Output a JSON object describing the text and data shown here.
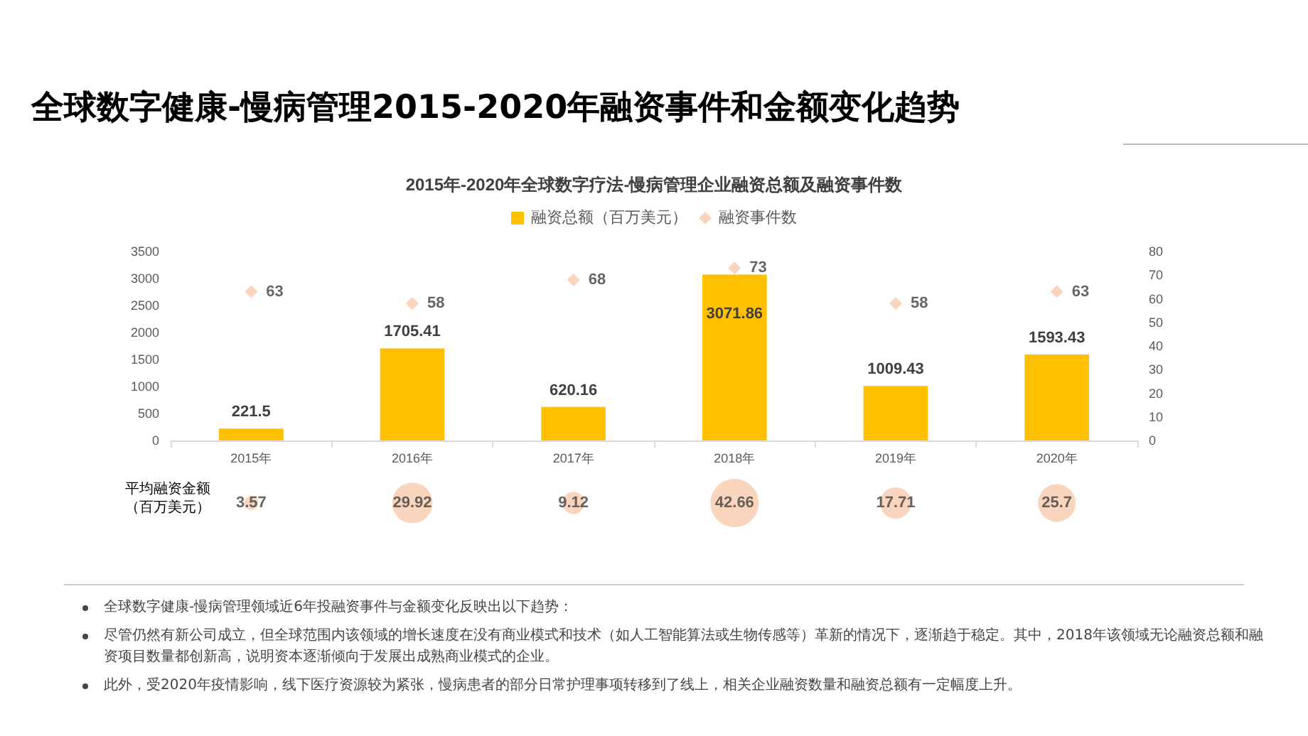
{
  "chart_data": [
    {
      "type": "bar",
      "title": "全球数字健康-慢病管理2015-2020年融资事件和金额变化趋势",
      "subtitle": "2015年-2020年全球数字疗法-慢病管理企业融资总额及融资事件数",
      "categories": [
        "2015年",
        "2016年",
        "2017年",
        "2018年",
        "2019年",
        "2020年"
      ],
      "series": [
        {
          "name": "融资总额（百万美元）",
          "color": "#ffc000",
          "values": [
            221.5,
            1705.41,
            620.16,
            3071.86,
            1009.43,
            1593.43
          ]
        },
        {
          "name": "融资事件数",
          "type": "scatter",
          "axis": "y2",
          "marker": "diamond",
          "color": "#f8cbad",
          "values": [
            63,
            58,
            68,
            73,
            58,
            63
          ]
        }
      ],
      "ylim": [
        0,
        3500
      ],
      "yticks": [
        0,
        500,
        1000,
        1500,
        2000,
        2500,
        3000,
        3500
      ],
      "y2lim": [
        0,
        80
      ],
      "y2ticks": [
        0,
        10,
        20,
        30,
        40,
        50,
        60,
        70,
        80
      ],
      "data_labels": true,
      "grid": false,
      "legend": "top",
      "annotations": [
        "全球数字健康-慢病管理领域近6年投融资事件与金额变化反映出以下趋势：",
        "尽管仍然有新公司成立，但全球范围内该领域的增长速度在没有商业模式和技术（如人工智能算法或生物传感等）革新的情况下，逐渐趋于稳定。其中，2018年该领域无论融资总额和融资项目数量都创新高，说明资本逐渐倾向于发展出成熟商业模式的企业。",
        "此外，受2020年疫情影响，线下医疗资源较为紧张，慢病患者的部分日常护理事项转移到了线上，相关企业融资数量和融资总额有一定幅度上升。"
      ]
    },
    {
      "type": "other",
      "ylabel": "平均融资金额（百万美元）",
      "categories": [
        null,
        null,
        null,
        null,
        null,
        null
      ],
      "values": [
        3.57,
        29.92,
        9.12,
        42.66,
        17.71,
        25.7
      ],
      "color": "#f8cbad",
      "data_labels": true
    }
  ]
}
